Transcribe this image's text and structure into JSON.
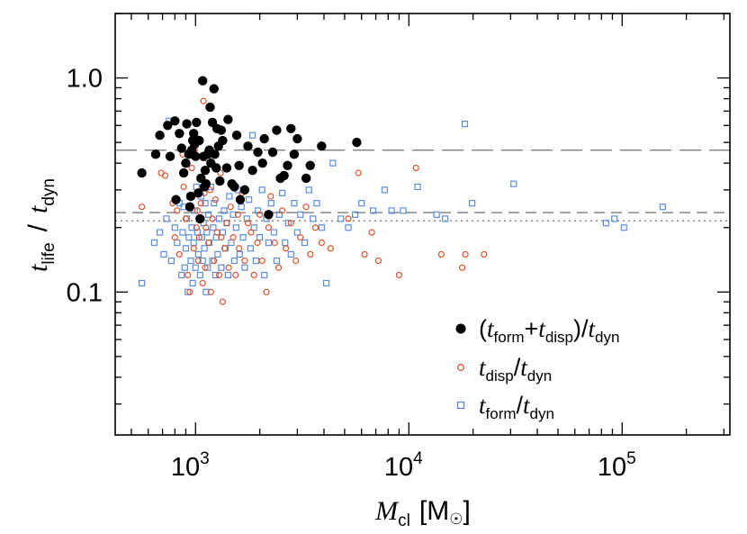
{
  "chart_data": {
    "type": "scatter",
    "title": "",
    "xlabel": {
      "main": "M",
      "sub": "cl",
      "unit": "[M",
      "unit_end": "]"
    },
    "ylabel": {
      "main_num": "t",
      "sub_num": "life",
      "slash": "/",
      "main_den": "t",
      "sub_den": "dyn"
    },
    "xscale": "log",
    "yscale": "log",
    "xlim": [
      420,
      320000
    ],
    "ylim": [
      0.0215,
      2.0
    ],
    "x_ticks": [
      {
        "value": 1000,
        "base": "10",
        "exp": "3"
      },
      {
        "value": 10000,
        "base": "10",
        "exp": "4"
      },
      {
        "value": 100000,
        "base": "10",
        "exp": "5"
      }
    ],
    "y_ticks": [
      {
        "value": 1.0,
        "label": "1.0"
      },
      {
        "value": 0.1,
        "label": "0.1"
      }
    ],
    "reference_lines": [
      {
        "y": 0.46,
        "style": "long-dash",
        "color": "#888888"
      },
      {
        "y": 0.235,
        "style": "dash",
        "color": "#888888"
      },
      {
        "y": 0.215,
        "style": "dotted",
        "color": "#888888"
      }
    ],
    "legend": {
      "position": "bottom-right",
      "entries": [
        {
          "key": "combined",
          "t1": "t",
          "s1": "form",
          "plus": "+",
          "t2": "t",
          "s2": "disp",
          "div": "/",
          "t3": "t",
          "s3": "dyn"
        },
        {
          "key": "disp",
          "t1": "t",
          "s1": "disp",
          "div": "/",
          "t2": "t",
          "s2": "dyn"
        },
        {
          "key": "form",
          "t1": "t",
          "s1": "form",
          "div": "/",
          "t2": "t",
          "s2": "dyn"
        }
      ]
    },
    "series": [
      {
        "name": "(t_form+t_disp)/t_dyn",
        "marker": "filled-circle",
        "color": "#000000",
        "points": [
          [
            560,
            0.36
          ],
          [
            650,
            0.44
          ],
          [
            680,
            0.54
          ],
          [
            740,
            0.6
          ],
          [
            760,
            0.43
          ],
          [
            800,
            0.63
          ],
          [
            810,
            0.27
          ],
          [
            840,
            0.55
          ],
          [
            860,
            0.47
          ],
          [
            880,
            0.36
          ],
          [
            900,
            0.4
          ],
          [
            910,
            0.61
          ],
          [
            930,
            0.44
          ],
          [
            940,
            0.25
          ],
          [
            950,
            0.28
          ],
          [
            960,
            0.46
          ],
          [
            970,
            0.51
          ],
          [
            980,
            0.55
          ],
          [
            990,
            0.49
          ],
          [
            1000,
            0.43
          ],
          [
            1010,
            0.62
          ],
          [
            1030,
            0.29
          ],
          [
            1040,
            0.51
          ],
          [
            1050,
            0.22
          ],
          [
            1060,
            0.34
          ],
          [
            1080,
            0.97
          ],
          [
            1090,
            0.43
          ],
          [
            1100,
            0.31
          ],
          [
            1110,
            0.37
          ],
          [
            1120,
            0.32
          ],
          [
            1140,
            0.44
          ],
          [
            1160,
            0.46
          ],
          [
            1170,
            0.73
          ],
          [
            1180,
            0.4
          ],
          [
            1200,
            0.62
          ],
          [
            1220,
            0.89
          ],
          [
            1230,
            0.44
          ],
          [
            1250,
            0.38
          ],
          [
            1260,
            0.58
          ],
          [
            1280,
            0.48
          ],
          [
            1300,
            0.33
          ],
          [
            1320,
            0.57
          ],
          [
            1340,
            0.51
          ],
          [
            1400,
            0.38
          ],
          [
            1420,
            0.64
          ],
          [
            1480,
            0.32
          ],
          [
            1520,
            0.31
          ],
          [
            1560,
            0.54
          ],
          [
            1600,
            0.39
          ],
          [
            1620,
            0.27
          ],
          [
            1700,
            0.3
          ],
          [
            1760,
            0.48
          ],
          [
            1850,
            0.37
          ],
          [
            1960,
            0.45
          ],
          [
            2060,
            0.4
          ],
          [
            2100,
            0.52
          ],
          [
            2200,
            0.23
          ],
          [
            2300,
            0.45
          ],
          [
            2400,
            0.57
          ],
          [
            2500,
            0.34
          ],
          [
            2600,
            0.35
          ],
          [
            2700,
            0.39
          ],
          [
            2800,
            0.58
          ],
          [
            2900,
            0.44
          ],
          [
            3000,
            0.52
          ],
          [
            3300,
            0.34
          ],
          [
            3450,
            0.39
          ],
          [
            3900,
            0.48
          ],
          [
            5700,
            0.5
          ]
        ]
      },
      {
        "name": "t_disp/t_dyn",
        "marker": "open-circle",
        "color": "#d9542f",
        "points": [
          [
            560,
            0.25
          ],
          [
            690,
            0.36
          ],
          [
            720,
            0.35
          ],
          [
            780,
            0.26
          ],
          [
            800,
            0.18
          ],
          [
            820,
            0.24
          ],
          [
            840,
            0.15
          ],
          [
            870,
            0.44
          ],
          [
            880,
            0.31
          ],
          [
            900,
            0.22
          ],
          [
            920,
            0.12
          ],
          [
            940,
            0.1
          ],
          [
            960,
            0.38
          ],
          [
            980,
            0.16
          ],
          [
            990,
            0.46
          ],
          [
            1000,
            0.53
          ],
          [
            1010,
            0.2
          ],
          [
            1020,
            0.24
          ],
          [
            1030,
            0.14
          ],
          [
            1040,
            0.18
          ],
          [
            1060,
            0.26
          ],
          [
            1080,
            0.11
          ],
          [
            1090,
            0.78
          ],
          [
            1100,
            0.29
          ],
          [
            1110,
            0.13
          ],
          [
            1120,
            0.2
          ],
          [
            1140,
            0.42
          ],
          [
            1150,
            0.17
          ],
          [
            1170,
            0.3
          ],
          [
            1180,
            0.1
          ],
          [
            1200,
            0.22
          ],
          [
            1220,
            0.14
          ],
          [
            1240,
            0.27
          ],
          [
            1260,
            0.19
          ],
          [
            1290,
            0.12
          ],
          [
            1310,
            0.36
          ],
          [
            1320,
            0.18
          ],
          [
            1340,
            0.09
          ],
          [
            1370,
            0.16
          ],
          [
            1400,
            0.21
          ],
          [
            1430,
            0.13
          ],
          [
            1460,
            0.25
          ],
          [
            1500,
            0.18
          ],
          [
            1540,
            0.12
          ],
          [
            1580,
            0.23
          ],
          [
            1600,
            0.16
          ],
          [
            1650,
            0.29
          ],
          [
            1700,
            0.14
          ],
          [
            1760,
            0.21
          ],
          [
            1820,
            0.19
          ],
          [
            1880,
            0.12
          ],
          [
            1950,
            0.17
          ],
          [
            2000,
            0.23
          ],
          [
            2050,
            0.14
          ],
          [
            2150,
            0.1
          ],
          [
            2200,
            0.2
          ],
          [
            2250,
            0.28
          ],
          [
            2350,
            0.17
          ],
          [
            2450,
            0.13
          ],
          [
            2550,
            0.24
          ],
          [
            2650,
            0.16
          ],
          [
            2800,
            0.21
          ],
          [
            2950,
            0.14
          ],
          [
            3100,
            0.18
          ],
          [
            3300,
            0.25
          ],
          [
            3450,
            0.15
          ],
          [
            3650,
            0.2
          ],
          [
            3900,
            0.17
          ],
          [
            4300,
            0.16
          ],
          [
            5200,
            0.22
          ],
          [
            5800,
            0.36
          ],
          [
            6200,
            0.15
          ],
          [
            6700,
            0.19
          ],
          [
            7200,
            0.14
          ],
          [
            9000,
            0.12
          ],
          [
            10800,
            0.38
          ],
          [
            14200,
            0.15
          ],
          [
            17800,
            0.13
          ],
          [
            18400,
            0.15
          ],
          [
            22500,
            0.15
          ]
        ]
      },
      {
        "name": "t_form/t_dyn",
        "marker": "open-square",
        "color": "#5b8ee0",
        "points": [
          [
            560,
            0.11
          ],
          [
            640,
            0.17
          ],
          [
            680,
            0.19
          ],
          [
            710,
            0.15
          ],
          [
            730,
            0.22
          ],
          [
            750,
            0.63
          ],
          [
            770,
            0.14
          ],
          [
            800,
            0.2
          ],
          [
            820,
            0.17
          ],
          [
            840,
            0.26
          ],
          [
            860,
            0.12
          ],
          [
            870,
            0.19
          ],
          [
            880,
            0.25
          ],
          [
            890,
            0.13
          ],
          [
            900,
            0.16
          ],
          [
            910,
            0.22
          ],
          [
            920,
            0.1
          ],
          [
            930,
            0.18
          ],
          [
            940,
            0.28
          ],
          [
            950,
            0.14
          ],
          [
            960,
            0.2
          ],
          [
            970,
            0.11
          ],
          [
            980,
            0.17
          ],
          [
            990,
            0.24
          ],
          [
            1000,
            0.13
          ],
          [
            1010,
            0.31
          ],
          [
            1020,
            0.19
          ],
          [
            1030,
            0.15
          ],
          [
            1040,
            0.22
          ],
          [
            1050,
            0.12
          ],
          [
            1060,
            0.28
          ],
          [
            1070,
            0.18
          ],
          [
            1080,
            0.14
          ],
          [
            1090,
            0.21
          ],
          [
            1100,
            0.16
          ],
          [
            1110,
            0.26
          ],
          [
            1120,
            0.1
          ],
          [
            1130,
            0.19
          ],
          [
            1140,
            0.13
          ],
          [
            1150,
            0.23
          ],
          [
            1160,
            0.17
          ],
          [
            1180,
            0.31
          ],
          [
            1200,
            0.14
          ],
          [
            1210,
            0.2
          ],
          [
            1220,
            0.26
          ],
          [
            1240,
            0.12
          ],
          [
            1250,
            0.18
          ],
          [
            1270,
            0.15
          ],
          [
            1290,
            0.22
          ],
          [
            1300,
            0.33
          ],
          [
            1320,
            0.13
          ],
          [
            1340,
            0.19
          ],
          [
            1360,
            0.24
          ],
          [
            1380,
            0.16
          ],
          [
            1400,
            0.21
          ],
          [
            1420,
            0.12
          ],
          [
            1440,
            0.28
          ],
          [
            1470,
            0.17
          ],
          [
            1500,
            0.23
          ],
          [
            1520,
            0.14
          ],
          [
            1550,
            0.2
          ],
          [
            1580,
            0.3
          ],
          [
            1610,
            0.15
          ],
          [
            1640,
            0.25
          ],
          [
            1670,
            0.18
          ],
          [
            1700,
            0.13
          ],
          [
            1740,
            0.22
          ],
          [
            1780,
            0.27
          ],
          [
            1810,
            0.16
          ],
          [
            1850,
            0.54
          ],
          [
            1880,
            0.2
          ],
          [
            1920,
            0.14
          ],
          [
            1960,
            0.24
          ],
          [
            2000,
            0.18
          ],
          [
            2050,
            0.3
          ],
          [
            2100,
            0.12
          ],
          [
            2150,
            0.22
          ],
          [
            2200,
            0.17
          ],
          [
            2260,
            0.26
          ],
          [
            2330,
            0.19
          ],
          [
            2400,
            0.14
          ],
          [
            2470,
            0.23
          ],
          [
            2550,
            0.29
          ],
          [
            2630,
            0.17
          ],
          [
            2720,
            0.21
          ],
          [
            2800,
            0.15
          ],
          [
            2900,
            0.26
          ],
          [
            3000,
            0.19
          ],
          [
            3100,
            0.23
          ],
          [
            3250,
            0.17
          ],
          [
            3400,
            0.3
          ],
          [
            3550,
            0.22
          ],
          [
            3700,
            0.26
          ],
          [
            3900,
            0.2
          ],
          [
            4100,
            0.11
          ],
          [
            4400,
            0.4
          ],
          [
            4800,
            0.22
          ],
          [
            5200,
            0.2
          ],
          [
            5600,
            0.23
          ],
          [
            6000,
            0.26
          ],
          [
            6800,
            0.24
          ],
          [
            7700,
            0.3
          ],
          [
            8300,
            0.24
          ],
          [
            9400,
            0.24
          ],
          [
            11000,
            0.31
          ],
          [
            13500,
            0.23
          ],
          [
            14800,
            0.22
          ],
          [
            18300,
            0.61
          ],
          [
            19800,
            0.26
          ],
          [
            31000,
            0.32
          ],
          [
            84000,
            0.21
          ],
          [
            92000,
            0.22
          ],
          [
            102000,
            0.2
          ],
          [
            155000,
            0.25
          ]
        ]
      }
    ]
  }
}
